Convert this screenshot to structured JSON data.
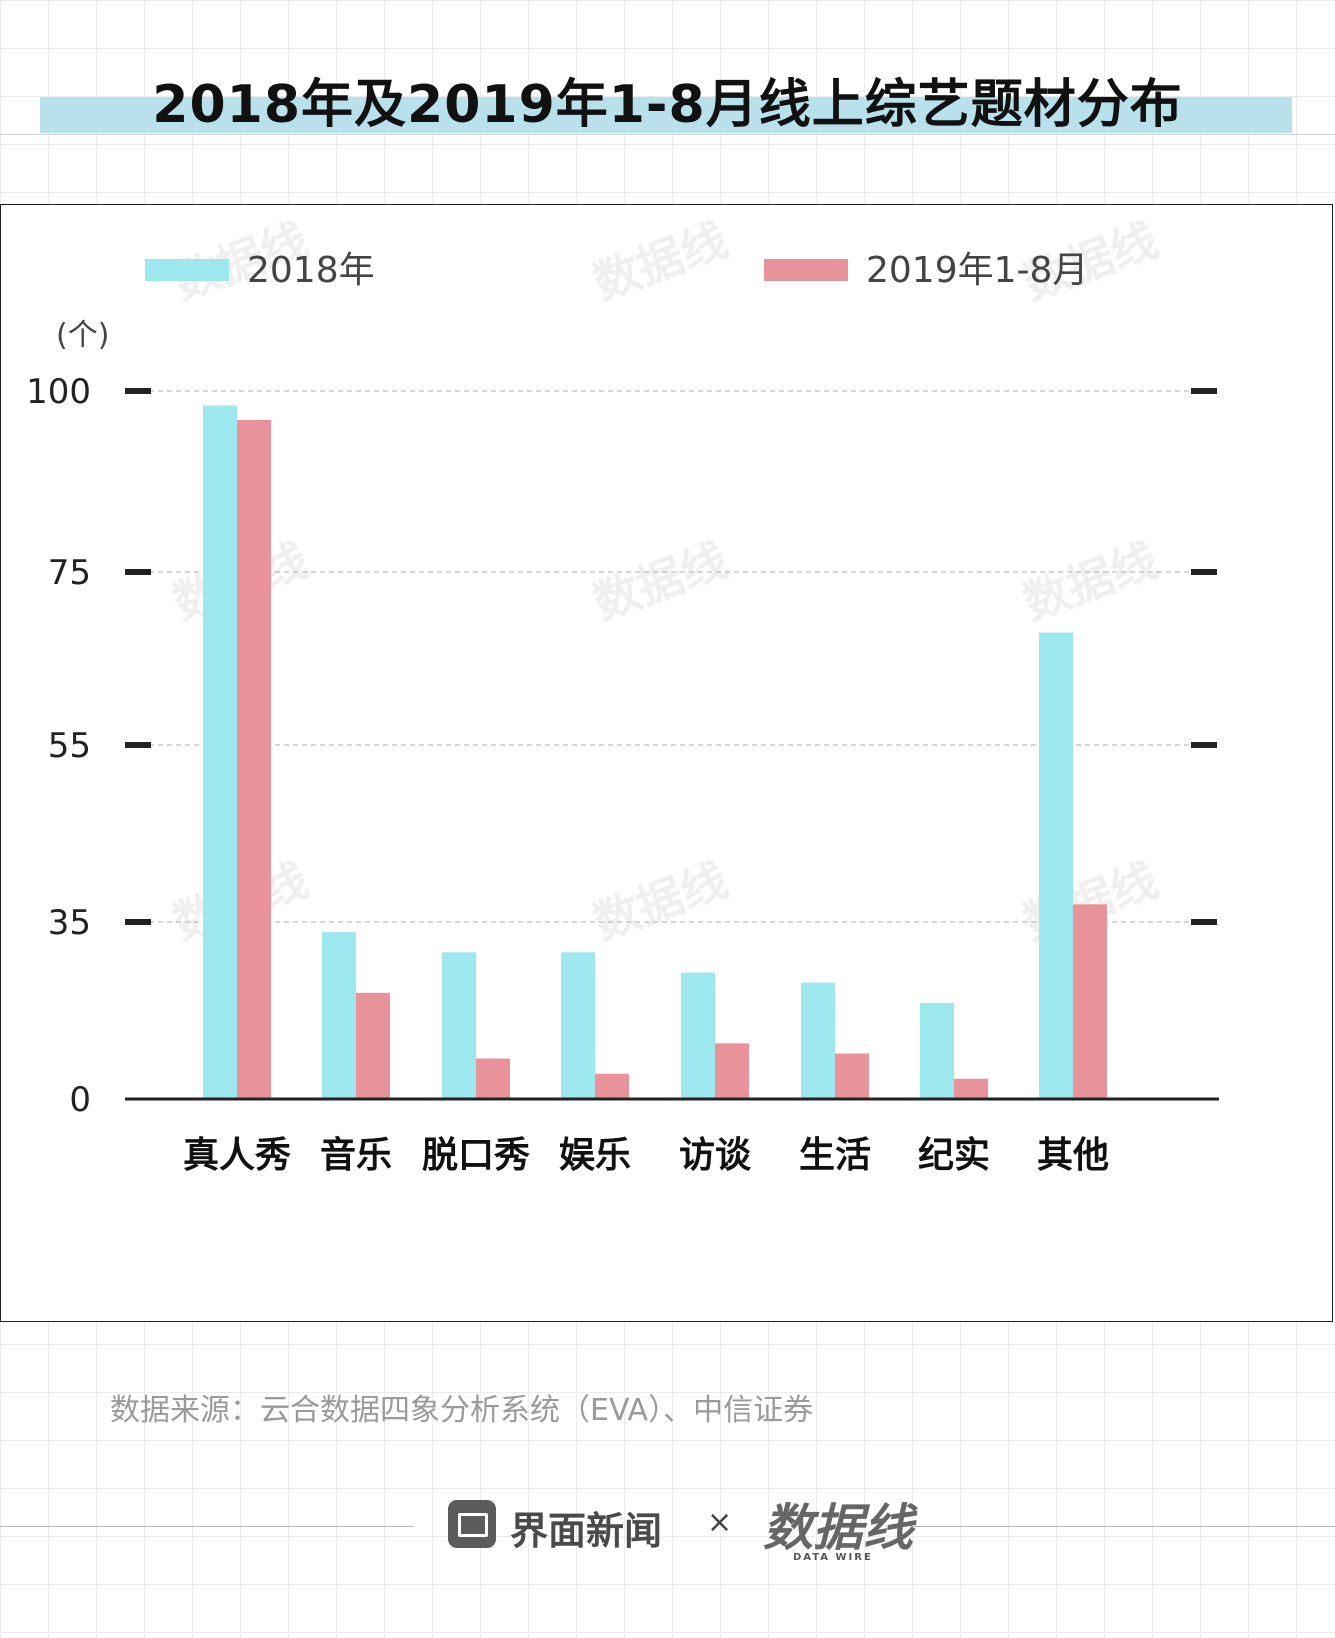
{
  "title": "2018年及2019年1-8月线上综艺题材分布",
  "source": "数据来源：云合数据四象分析系统（EVA）、中信证券",
  "footer": {
    "brand": "界面新闻",
    "separator": "×",
    "partner": "数据线",
    "partner_sub": "DATA WIRE"
  },
  "watermark": "数据线",
  "colors": {
    "series_2018": "#9de8ee",
    "series_2019": "#e8929a",
    "title_band": "#b9e1ec"
  },
  "chart_data": {
    "type": "bar",
    "title": "2018年及2019年1-8月线上综艺题材分布",
    "unit_label": "(个)",
    "categories": [
      "真人秀",
      "音乐",
      "脱口秀",
      "娱乐",
      "访谈",
      "生活",
      "纪实",
      "其他"
    ],
    "series": [
      {
        "name": "2018年",
        "values": [
          98,
          33,
          29,
          29,
          25,
          23,
          19,
          68
        ]
      },
      {
        "name": "2019年1-8月",
        "values": [
          96,
          21,
          8,
          5,
          11,
          9,
          4,
          37
        ]
      }
    ],
    "y_ticks": [
      {
        "value": 0,
        "label": "0"
      },
      {
        "value": 35,
        "label": "35"
      },
      {
        "value": 55,
        "label": "55"
      },
      {
        "value": 75,
        "label": "75"
      },
      {
        "value": 100,
        "label": "100"
      }
    ],
    "legend_position": "top",
    "grid": true
  }
}
